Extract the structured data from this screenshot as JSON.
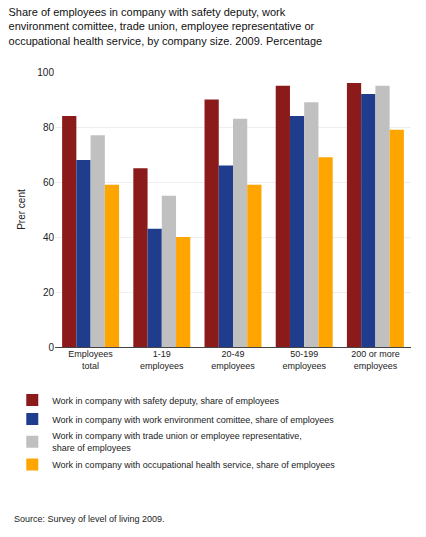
{
  "chart_data": {
    "type": "bar",
    "title": "Share of employees in company with safety deputy, work\nenvironment comittee, trade union, employee representative or\noccupational health service, by company size. 2009. Percentage",
    "ylabel": "Prer cent",
    "annotations": [
      "Source: Survey of level of living 2009."
    ],
    "categories": [
      "Employees\ntotal",
      "1-19\nemployees",
      "20-49\nemployees",
      "50-199\nemployees",
      "200 or more\nemployees"
    ],
    "series": [
      {
        "name": "Work in company with safety deputy, share of employees",
        "color": "#8B1A1A",
        "values": [
          84,
          65,
          90,
          95,
          96
        ]
      },
      {
        "name": "Work in company with work environment comittee, share of employees",
        "color": "#1F3D8C",
        "values": [
          68,
          43,
          66,
          84,
          92
        ]
      },
      {
        "name": "Work in company with trade union or employee representative,\nshare of employees",
        "color": "#C0C0C0",
        "values": [
          77,
          55,
          83,
          89,
          95
        ]
      },
      {
        "name": "Work in company with occupational health service, share of employees",
        "color": "#FFA500",
        "values": [
          59,
          40,
          59,
          69,
          79
        ]
      }
    ],
    "ylim": [
      0,
      100
    ],
    "yticks": [
      0,
      20,
      40,
      60,
      80,
      100
    ],
    "grid": true,
    "legend": "bottom"
  }
}
